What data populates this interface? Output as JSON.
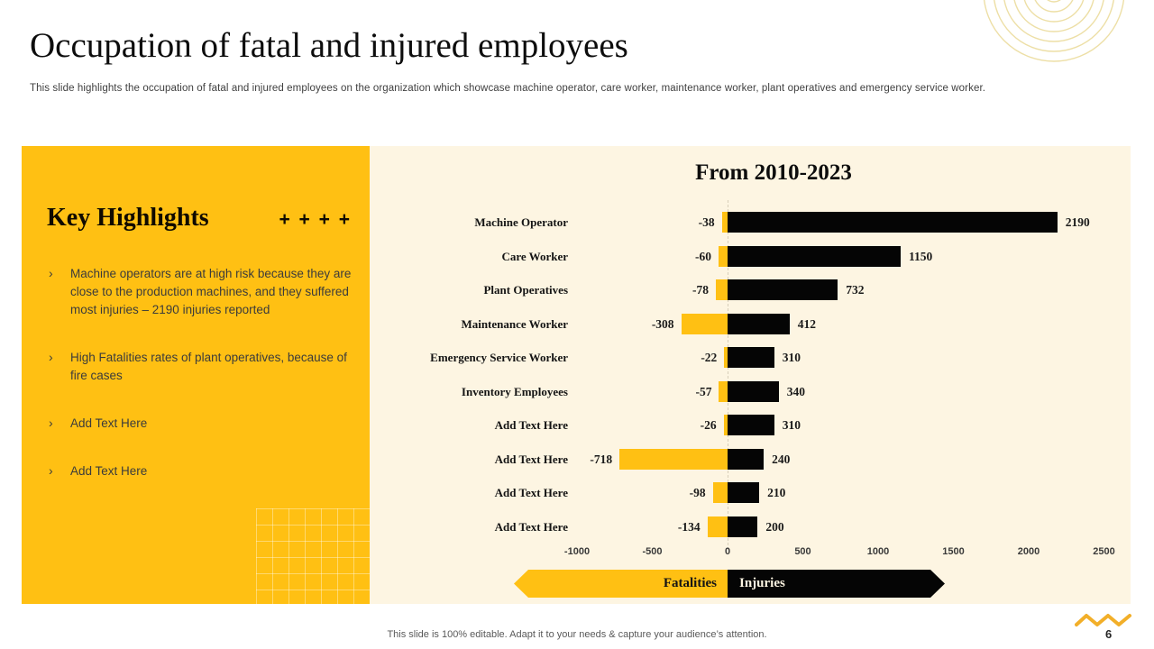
{
  "slide": {
    "title": "Occupation of fatal and injured employees",
    "subtitle": "This slide highlights the occupation of fatal and injured employees on the organization which showcase machine operator, care worker, maintenance worker, plant operatives and emergency service worker.",
    "footer": "This slide is 100% editable. Adapt it to your needs & capture your audience’s attention.",
    "page_number": "6"
  },
  "highlights": {
    "title": "Key Highlights",
    "plus_marks": "+ + + +",
    "bullet_marker": "›",
    "bullets": [
      "Machine operators are at high risk because they are close to the production machines, and they suffered most injuries – 2190 injuries reported",
      "High Fatalities rates of plant operatives, because of fire cases",
      "Add Text Here",
      "Add Text Here"
    ]
  },
  "chart_data": {
    "type": "bar",
    "orientation": "horizontal-diverging",
    "title": "From 2010-2023",
    "categories": [
      "Machine Operator",
      "Care Worker",
      "Plant Operatives",
      "Maintenance Worker",
      "Emergency Service Worker",
      "Inventory Employees",
      "Add Text Here",
      "Add Text Here",
      "Add Text Here",
      "Add Text Here"
    ],
    "series": [
      {
        "name": "Fatalities",
        "color": "#FFC013",
        "values": [
          -38,
          -60,
          -78,
          -308,
          -22,
          -57,
          -26,
          -718,
          -98,
          -134
        ]
      },
      {
        "name": "Injuries",
        "color": "#050505",
        "values": [
          2190,
          1150,
          732,
          412,
          310,
          340,
          310,
          240,
          210,
          200
        ]
      }
    ],
    "x_ticks": [
      -1000,
      -500,
      0,
      500,
      1000,
      1500,
      2000,
      2500
    ],
    "xlim": [
      -1400,
      2700
    ],
    "grid": "zero-line-only",
    "legend_position": "bottom"
  },
  "colors": {
    "gold": "#FFC013",
    "cream_background": "#FDF5E2",
    "bar_black": "#050505",
    "decoration_light_gold": "#EDDFA6",
    "decoration_zigzag_gold": "#F2AF29"
  },
  "decorations": {
    "top_right": "concentric-circles",
    "bottom_right": "zigzag-line",
    "panel_bottom_right": "grid-pattern"
  }
}
